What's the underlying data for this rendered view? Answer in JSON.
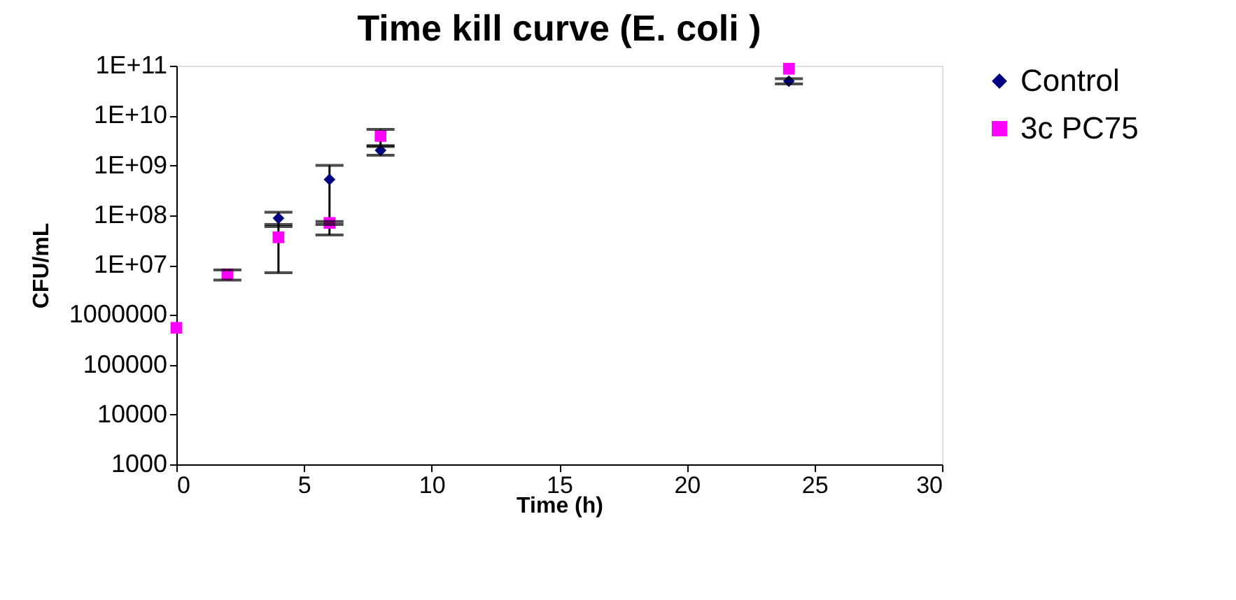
{
  "chart_data": {
    "type": "scatter",
    "title": "Time kill curve (E. coli )",
    "xlabel": "Time (h)",
    "ylabel": "CFU/mL",
    "xlim": [
      0,
      30
    ],
    "xticks": [
      0,
      5,
      10,
      15,
      20,
      25,
      30
    ],
    "ylim": [
      1000,
      100000000000
    ],
    "log": true,
    "yticks": [
      1000,
      10000,
      100000,
      1000000,
      {
        "value": 10000000,
        "label": "1E+07"
      },
      {
        "value": 100000000,
        "label": "1E+08"
      },
      {
        "value": 1000000000,
        "label": "1E+09"
      },
      {
        "value": 10000000000,
        "label": "1E+10"
      },
      {
        "value": 100000000000,
        "label": "1E+11"
      }
    ],
    "x": [
      0,
      2,
      4,
      6,
      8,
      24
    ],
    "series": [
      {
        "name": "Control",
        "color": "#000080",
        "marker": "diamond",
        "values": [
          null,
          null,
          87000000,
          520000000,
          2000000000,
          49000000000
        ],
        "errors": [
          null,
          null,
          28000000,
          480000000,
          400000000,
          6000000000
        ]
      },
      {
        "name": "3c PC75",
        "color": "#ff00ff",
        "marker": "square",
        "values": [
          550000,
          6500000,
          36000000,
          70000000,
          3900000000,
          87000000000
        ],
        "errors": [
          null,
          1500000,
          29000000,
          5000000,
          1400000000,
          null
        ]
      }
    ],
    "grid": false,
    "legend": "right"
  }
}
